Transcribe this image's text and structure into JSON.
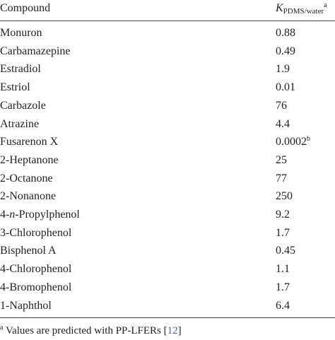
{
  "table": {
    "header": {
      "compound": "Compound",
      "value": {
        "symbol": "K",
        "subscript": "PDMS/water",
        "note": "a"
      }
    },
    "rows": [
      {
        "compound": "Monuron",
        "value": "0.88"
      },
      {
        "compound": "Carbamazepine",
        "value": "0.49"
      },
      {
        "compound": "Estradiol",
        "value": "1.9"
      },
      {
        "compound": "Estriol",
        "value": "0.01"
      },
      {
        "compound": "Carbazole",
        "value": "76"
      },
      {
        "compound": "Atrazine",
        "value": "4.4"
      },
      {
        "compound": "Fusarenon X",
        "value": "0.0002",
        "note": "b"
      },
      {
        "compound": "2-Heptanone",
        "value": "25"
      },
      {
        "compound": "2-Octanone",
        "value": "77"
      },
      {
        "compound": "2-Nonanone",
        "value": "250"
      },
      {
        "compound": {
          "prefix": "4-",
          "italic": "n",
          "suffix": "-Propylphenol"
        },
        "value": "9.2"
      },
      {
        "compound": "3-Chlorophenol",
        "value": "1.7"
      },
      {
        "compound": "Bisphenol A",
        "value": "0.45"
      },
      {
        "compound": "4-Chlorophenol",
        "value": "1.1"
      },
      {
        "compound": "4-Bromophenol",
        "value": "1.7"
      },
      {
        "compound": "1-Naphthol",
        "value": "6.4"
      }
    ],
    "footnote": {
      "mark": "a",
      "text": "Values are predicted with PP-LFERs [",
      "ref": "12",
      "close": "]"
    }
  }
}
